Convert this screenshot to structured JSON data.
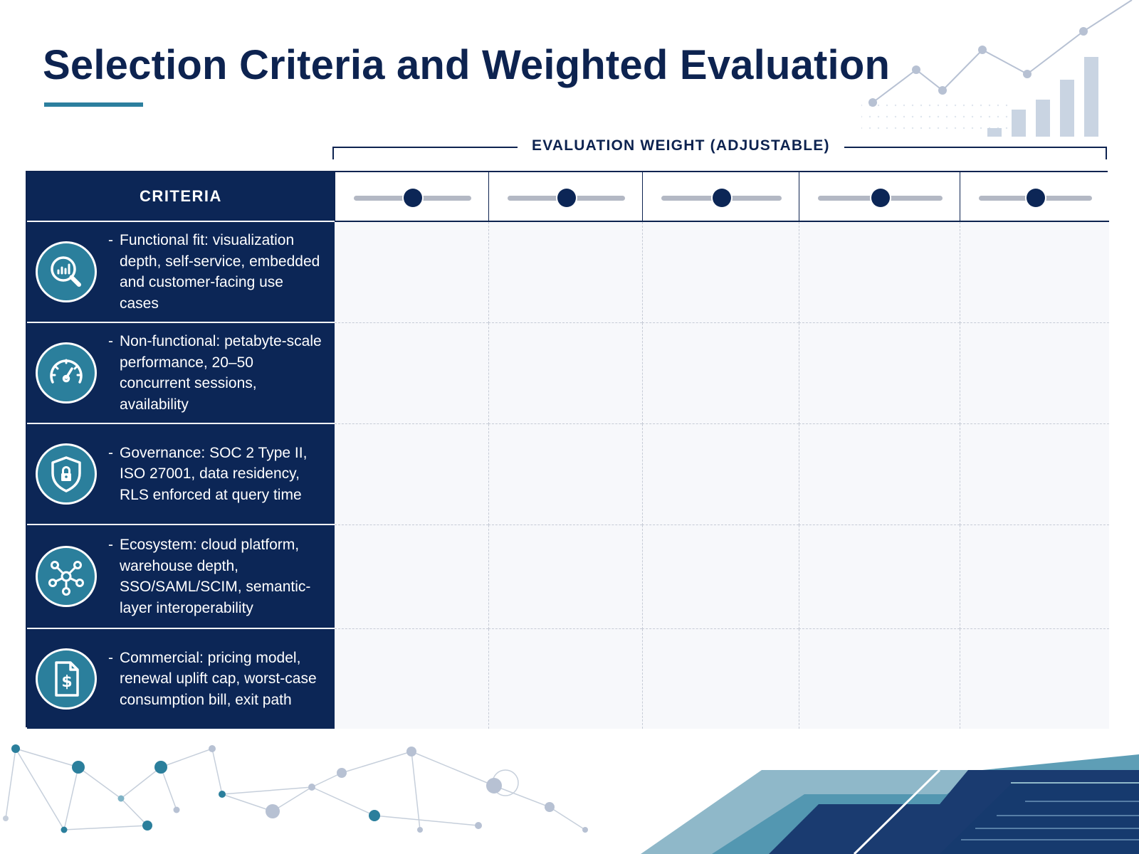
{
  "title": "Selection Criteria and Weighted Evaluation",
  "weight_header": "EVALUATION WEIGHT (ADJUSTABLE)",
  "criteria_header": "CRITERIA",
  "weight_sliders": [
    {
      "value": 0.5
    },
    {
      "value": 0.5
    },
    {
      "value": 0.5
    },
    {
      "value": 0.5
    },
    {
      "value": 0.5
    }
  ],
  "criteria": [
    {
      "icon": "search-chart-icon",
      "dash": "-",
      "text": "Functional fit: visualization depth, self-service, embedded and customer-facing use cases"
    },
    {
      "icon": "gauge-icon",
      "dash": "-",
      "text": "Non-functional: petabyte-scale performance, 20–50 concurrent sessions, availability"
    },
    {
      "icon": "shield-lock-icon",
      "dash": "-",
      "text": "Governance: SOC 2 Type II, ISO 27001, data residency, RLS enforced at query time"
    },
    {
      "icon": "network-hub-icon",
      "dash": "-",
      "text": "Ecosystem: cloud platform, warehouse depth, SSO/SAML/SCIM, semantic-layer interoperability"
    },
    {
      "icon": "invoice-dollar-icon",
      "dash": "-",
      "text": "Commercial: pricing model, renewal uplift cap, worst-case consumption bill, exit path"
    }
  ],
  "colors": {
    "navy": "#0c2656",
    "teal": "#2b7f9c",
    "accent_line": "#2c7f9e",
    "slider_track": "#b3b8c4"
  }
}
